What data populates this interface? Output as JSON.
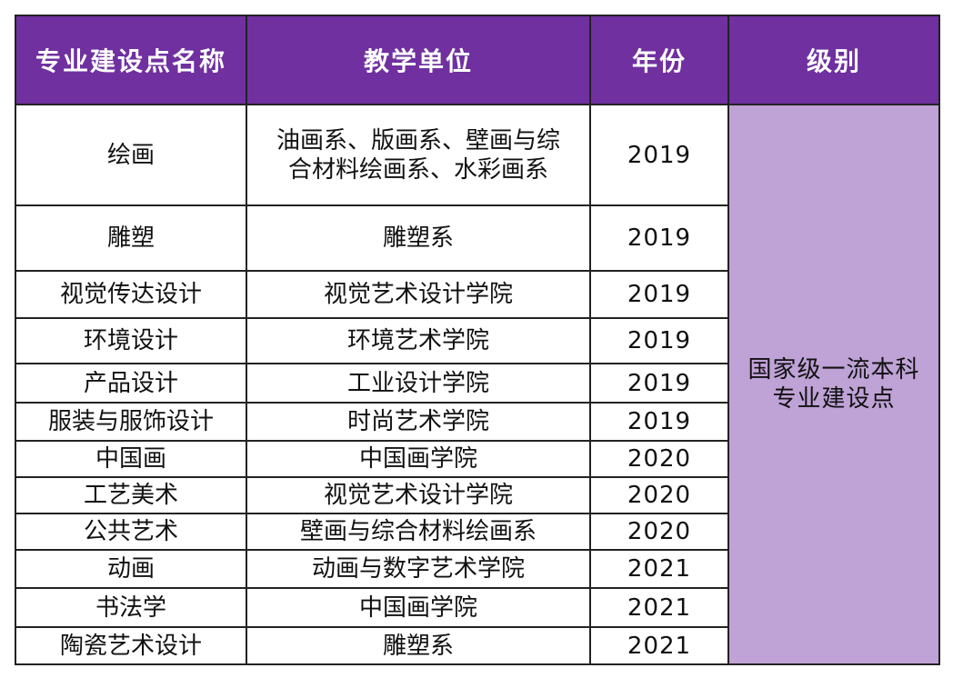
{
  "colors": {
    "header_bg": "#7030a0",
    "header_text": "#ffffff",
    "level_bg": "#bfa2d6",
    "border": "#222222"
  },
  "header": {
    "name": "专业建设点名称",
    "unit": "教学单位",
    "year": "年份",
    "level": "级别"
  },
  "level": {
    "line1": "国家级一流本科",
    "line2": "专业建设点"
  },
  "rows": [
    {
      "name": "绘画",
      "unit_line1": "油画系、版画系、壁画与综",
      "unit_line2": "合材料绘画系、水彩画系",
      "year": "2019"
    },
    {
      "name": "雕塑",
      "unit": "雕塑系",
      "year": "2019"
    },
    {
      "name": "视觉传达设计",
      "unit": "视觉艺术设计学院",
      "year": "2019"
    },
    {
      "name": "环境设计",
      "unit": "环境艺术学院",
      "year": "2019"
    },
    {
      "name": "产品设计",
      "unit": "工业设计学院",
      "year": "2019"
    },
    {
      "name": "服装与服饰设计",
      "unit": "时尚艺术学院",
      "year": "2019"
    },
    {
      "name": "中国画",
      "unit": "中国画学院",
      "year": "2020"
    },
    {
      "name": "工艺美术",
      "unit": "视觉艺术设计学院",
      "year": "2020"
    },
    {
      "name": "公共艺术",
      "unit": "壁画与综合材料绘画系",
      "year": "2020"
    },
    {
      "name": "动画",
      "unit": "动画与数字艺术学院",
      "year": "2021"
    },
    {
      "name": "书法学",
      "unit": "中国画学院",
      "year": "2021"
    },
    {
      "name": "陶瓷艺术设计",
      "unit": "雕塑系",
      "year": "2021"
    }
  ]
}
